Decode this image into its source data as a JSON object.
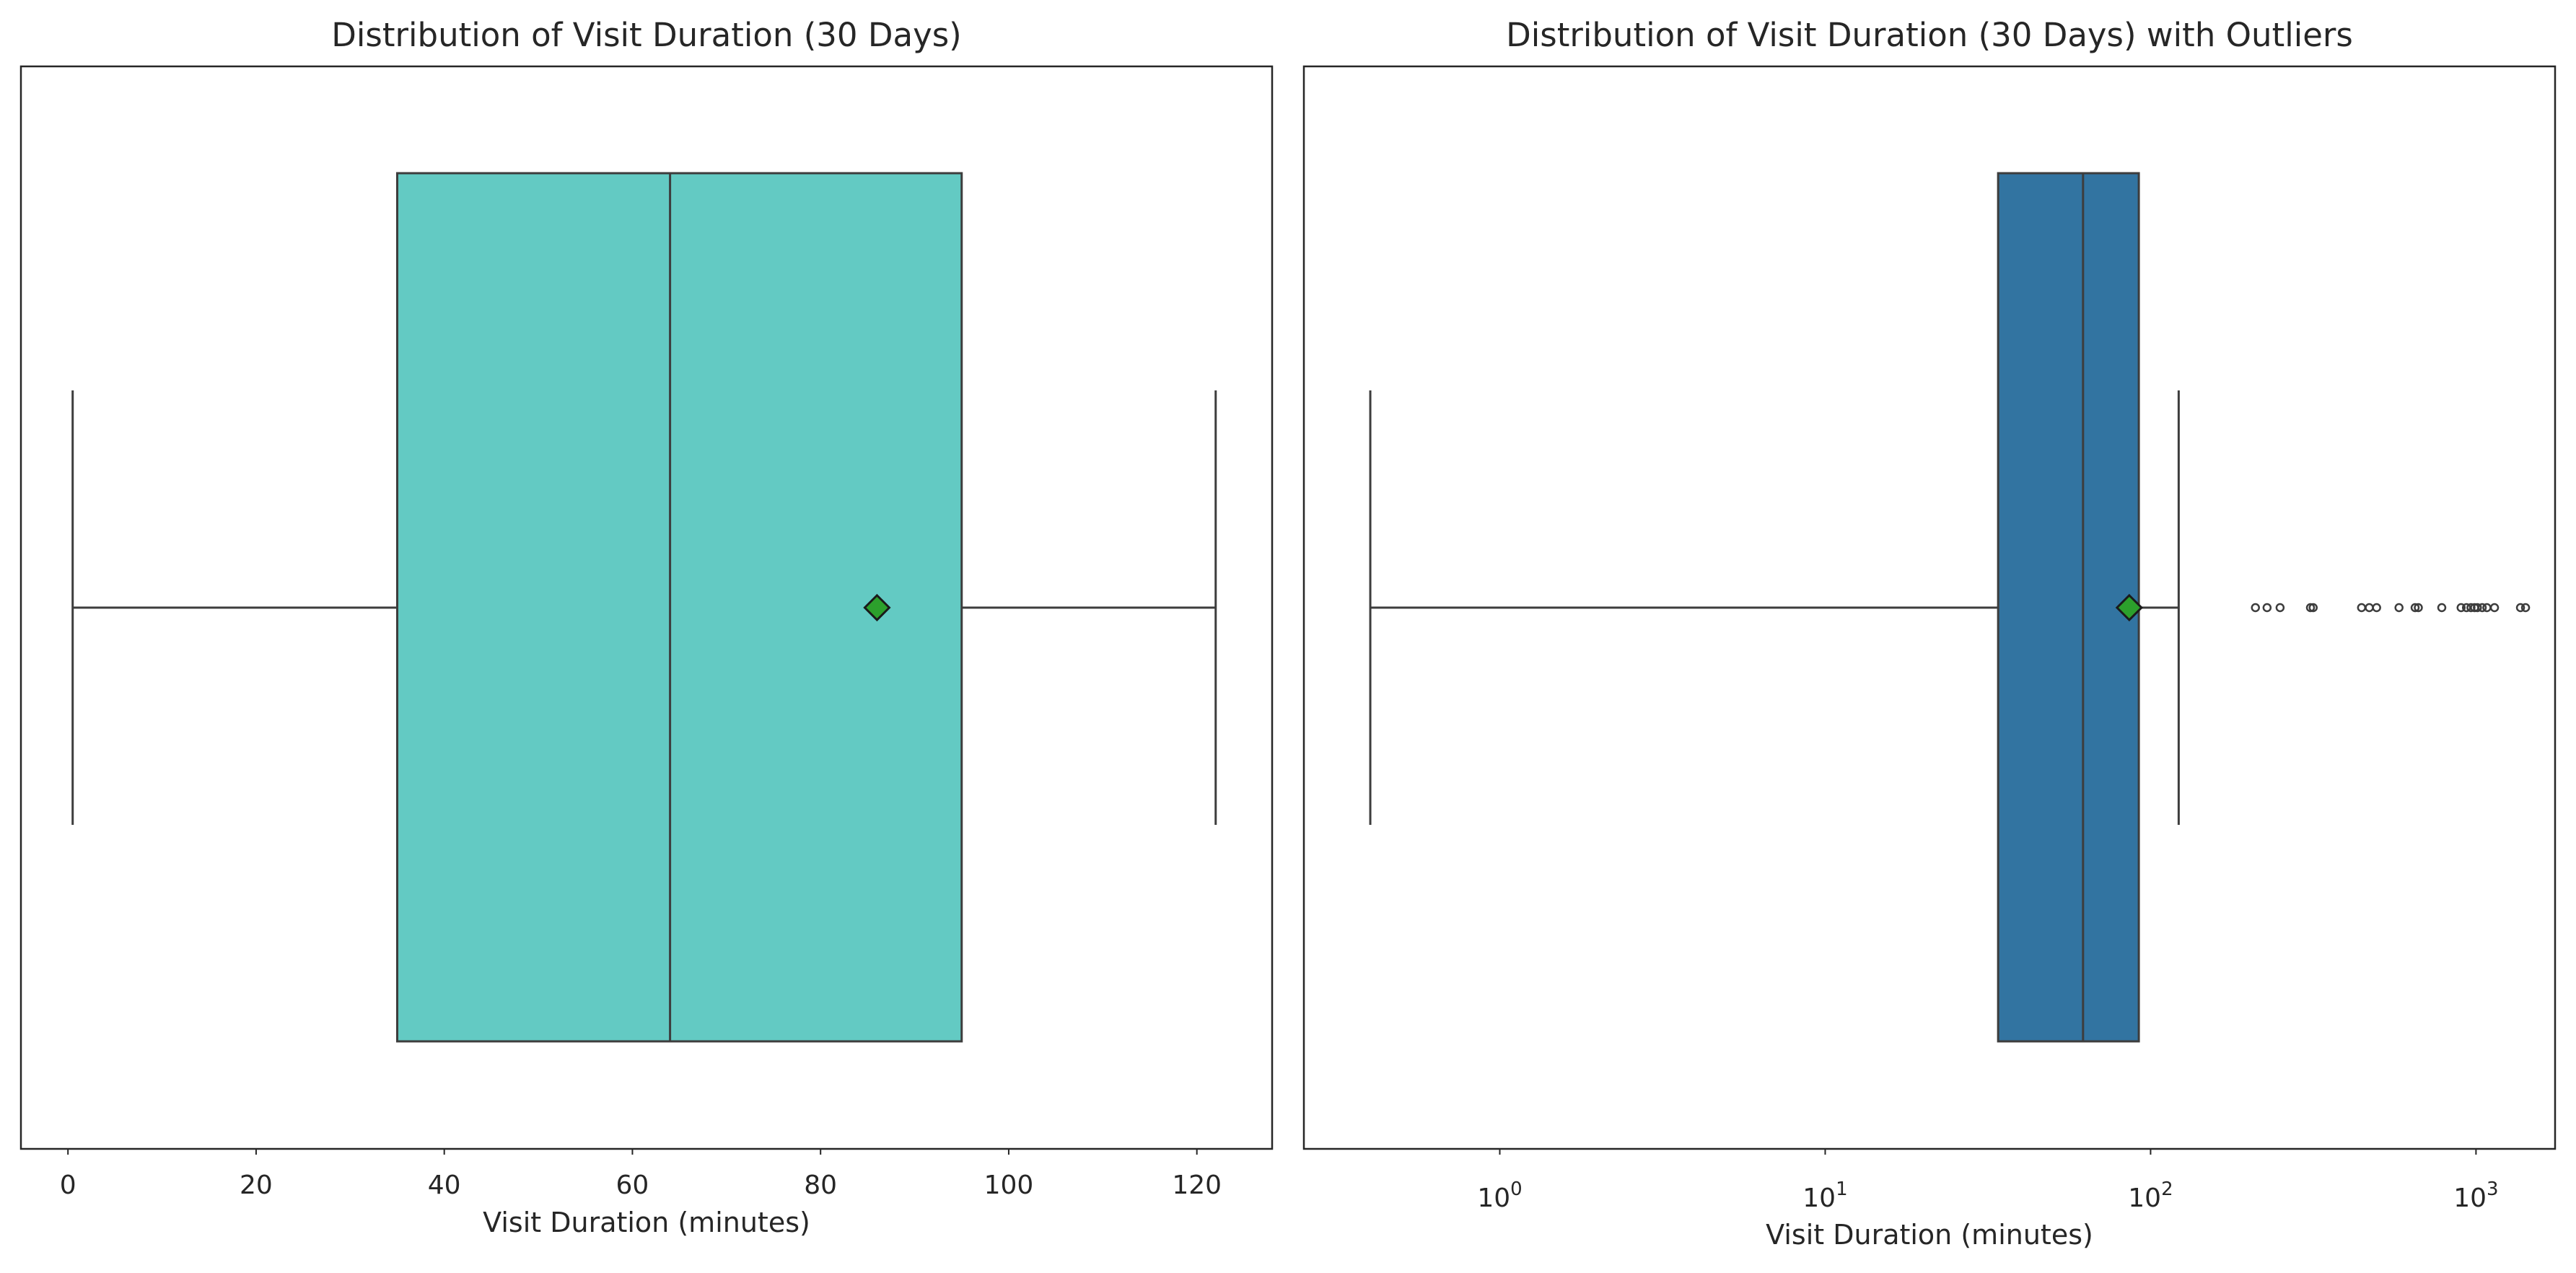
{
  "chart_data": [
    {
      "type": "box",
      "title": "Distribution of Visit Duration (30 Days)",
      "xlabel": "Visit Duration (minutes)",
      "ylabel": "",
      "xscale": "linear",
      "xlim": [
        -5,
        128
      ],
      "xticks": [
        0,
        20,
        40,
        60,
        80,
        100,
        120
      ],
      "xtick_labels": [
        "0",
        "20",
        "40",
        "60",
        "80",
        "100",
        "120"
      ],
      "grid": false,
      "box": {
        "whisker_low": 0.5,
        "q1": 35,
        "median": 64,
        "q3": 95,
        "whisker_high": 122,
        "mean": 86,
        "outliers": []
      },
      "box_color": "#63cac3",
      "mean_marker_color": "#2ca02c",
      "edge_color": "#3d3d3d"
    },
    {
      "type": "box",
      "title": "Distribution of Visit Duration (30 Days) with Outliers",
      "xlabel": "Visit Duration (minutes)",
      "ylabel": "",
      "xscale": "log",
      "xlim": [
        0.25,
        1750
      ],
      "xticks": [
        1,
        10,
        100,
        1000
      ],
      "xtick_labels": [
        {
          "base": "10",
          "exp": "0"
        },
        {
          "base": "10",
          "exp": "1"
        },
        {
          "base": "10",
          "exp": "2"
        },
        {
          "base": "10",
          "exp": "3"
        }
      ],
      "grid": false,
      "box": {
        "whisker_low": 0.4,
        "q1": 34,
        "median": 62,
        "q3": 92,
        "whisker_high": 122,
        "mean": 86,
        "outliers": [
          210,
          228,
          250,
          310,
          316,
          445,
          470,
          495,
          580,
          650,
          665,
          785,
          900,
          935,
          965,
          990,
          1010,
          1045,
          1080,
          1140,
          1370,
          1420
        ]
      },
      "box_color": "#3274a1",
      "mean_marker_color": "#2ca02c",
      "edge_color": "#3d3d3d"
    }
  ]
}
